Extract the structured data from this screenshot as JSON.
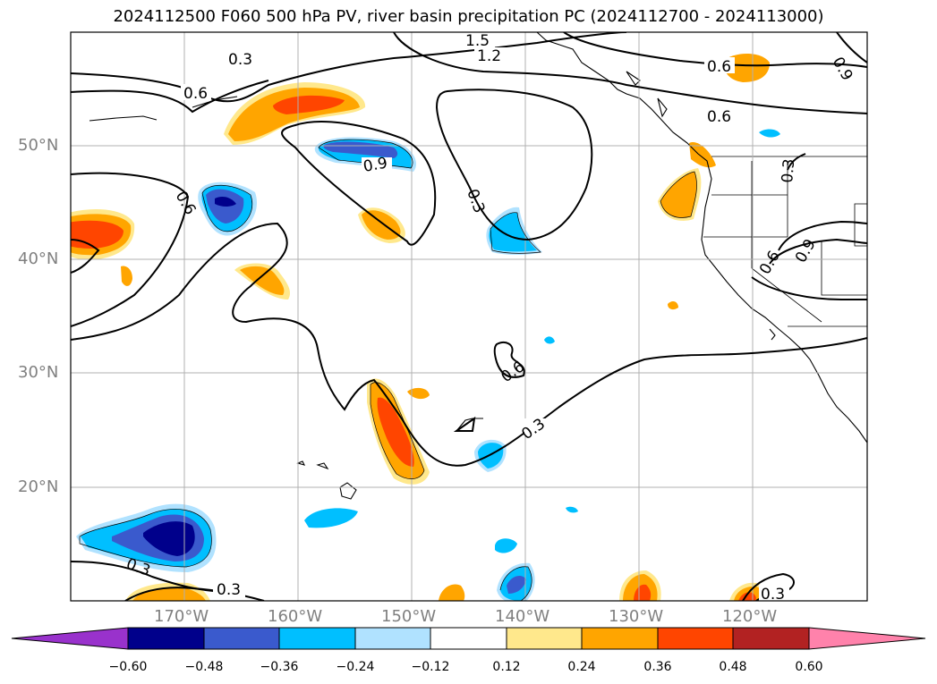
{
  "title": "2024112500 F060 500 hPa PV, river basin precipitation PC (2024112700 - 2024113000)",
  "map": {
    "lon_range": [
      -180,
      -110
    ],
    "lat_range": [
      10,
      60
    ],
    "lat_labels": [
      "50°N",
      "40°N",
      "30°N",
      "20°N"
    ],
    "lon_labels": [
      "170°W",
      "160°W",
      "150°W",
      "140°W",
      "130°W",
      "120°W"
    ],
    "contour_labels": [
      "1.5",
      "1.2",
      "0.3",
      "0.6",
      "0.6",
      "0.6",
      "0.9",
      "0.9",
      "0.6",
      "0.3",
      "0.3",
      "0.3",
      "0.6",
      "0.3",
      "0.3",
      "0.6",
      "0.9",
      "0.3"
    ]
  },
  "colorbar": {
    "ticks": [
      "−0.60",
      "−0.48",
      "−0.36",
      "−0.24",
      "−0.12",
      "0.12",
      "0.24",
      "0.36",
      "0.48",
      "0.60"
    ],
    "colors": [
      "#9932cc",
      "#00008b",
      "#3a5acd",
      "#00bfff",
      "#b0e2ff",
      "#ffffff",
      "#ffe88c",
      "#ffa500",
      "#ff4500",
      "#b22222",
      "#ff82ab"
    ]
  }
}
